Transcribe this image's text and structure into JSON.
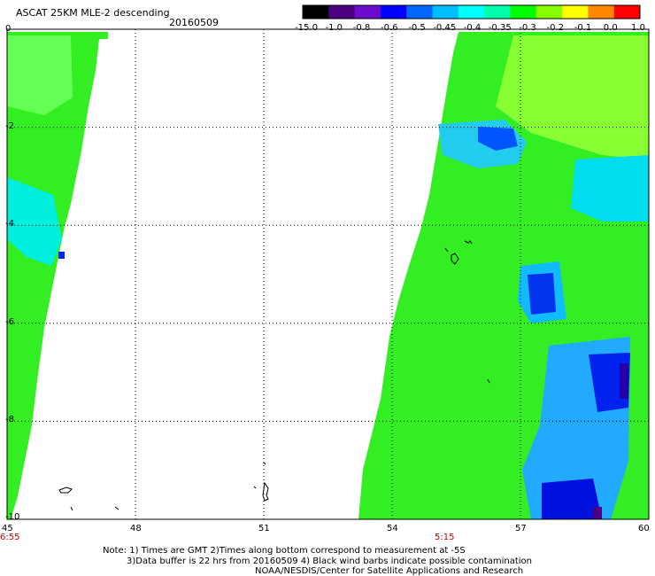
{
  "title": "ASCAT 25KM MLE-2 descending",
  "date": "20160509",
  "colorbar": {
    "labels": [
      "-15.0",
      "-1.0",
      "-0.8",
      "-0.6",
      "-0.5",
      "-0.45",
      "-0.4",
      "-0.35",
      "-0.3",
      "-0.2",
      "-0.1",
      "0.0",
      "1.0"
    ],
    "colors": [
      "#000000",
      "#4b0082",
      "#6a0dcc",
      "#0000ff",
      "#0066ff",
      "#00bfff",
      "#00ffff",
      "#00ffaa",
      "#00ff00",
      "#88ff00",
      "#ffff00",
      "#ff8800",
      "#ff0000"
    ]
  },
  "map": {
    "x_ticks": [
      "45",
      "48",
      "51",
      "54",
      "57",
      "60"
    ],
    "y_ticks": [
      "0",
      "-2",
      "-4",
      "-6",
      "-8",
      "-10"
    ],
    "lon_range": [
      45,
      60
    ],
    "lat_range": [
      -10,
      0
    ],
    "left_swath_time": "6:55",
    "right_swath_time": "5:15"
  },
  "notes": {
    "line1": "Note: 1) Times are GMT 2)Times along bottom correspond to measurement at -5S",
    "line2": "3)Data buffer is 22 hrs from 20160509 4) Black wind barbs indicate possible contamination",
    "line3": "NOAA/NESDIS/Center for Satellite Applications and Research"
  }
}
